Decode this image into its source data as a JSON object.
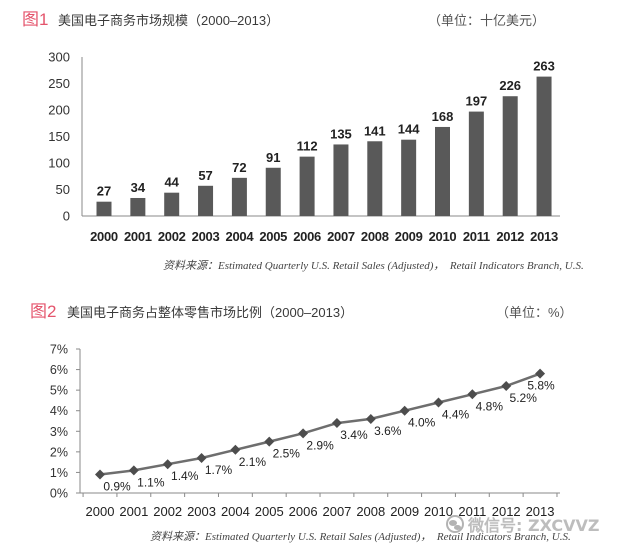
{
  "chart_data": [
    {
      "type": "bar",
      "figure_label": "图1",
      "title": "美国电子商务市场规模（2000–2013）",
      "unit": "（单位：十亿美元）",
      "categories": [
        "2000",
        "2001",
        "2002",
        "2003",
        "2004",
        "2005",
        "2006",
        "2007",
        "2008",
        "2009",
        "2010",
        "2011",
        "2012",
        "2013"
      ],
      "values": [
        27,
        34,
        44,
        57,
        72,
        91,
        112,
        135,
        141,
        144,
        168,
        197,
        226,
        263
      ],
      "ylim": [
        0,
        300
      ],
      "yticks": [
        0,
        50,
        100,
        150,
        200,
        250,
        300
      ],
      "grid": false,
      "source": "资料来源：Estimated Quarterly U.S. Retail Sales (Adjusted)，  Retail Indicators Branch, U.S."
    },
    {
      "type": "line",
      "figure_label": "图2",
      "title": "美国电子商务占整体零售市场比例（2000–2013）",
      "unit": "（单位：%）",
      "categories": [
        "2000",
        "2001",
        "2002",
        "2003",
        "2004",
        "2005",
        "2006",
        "2007",
        "2008",
        "2009",
        "2010",
        "2011",
        "2012",
        "2013"
      ],
      "values": [
        0.9,
        1.1,
        1.4,
        1.7,
        2.1,
        2.5,
        2.9,
        3.4,
        3.6,
        4.0,
        4.4,
        4.8,
        5.2,
        5.8
      ],
      "data_labels": [
        "0.9%",
        "1.1%",
        "1.4%",
        "1.7%",
        "2.1%",
        "2.5%",
        "2.9%",
        "3.4%",
        "3.6%",
        "4.0%",
        "4.4%",
        "4.8%",
        "5.2%",
        "5.8%"
      ],
      "ylim": [
        0,
        7
      ],
      "yticks": [
        0,
        1,
        2,
        3,
        4,
        5,
        6,
        7
      ],
      "ytick_labels": [
        "0%",
        "1%",
        "2%",
        "3%",
        "4%",
        "5%",
        "6%",
        "7%"
      ],
      "grid": false,
      "source": "资料来源：Estimated Quarterly U.S. Retail Sales (Adjusted)，  Retail Indicators Branch, U.S."
    }
  ],
  "colors": {
    "figure_label": "#e4546c",
    "bar": "#595959",
    "line": "#6e6e6e",
    "marker": "#4d4d4d",
    "axis": "#8a8a8a",
    "text": "#333333"
  },
  "watermark": {
    "icon": "wechat-icon",
    "text": "微信号: ZXCVVZ"
  }
}
